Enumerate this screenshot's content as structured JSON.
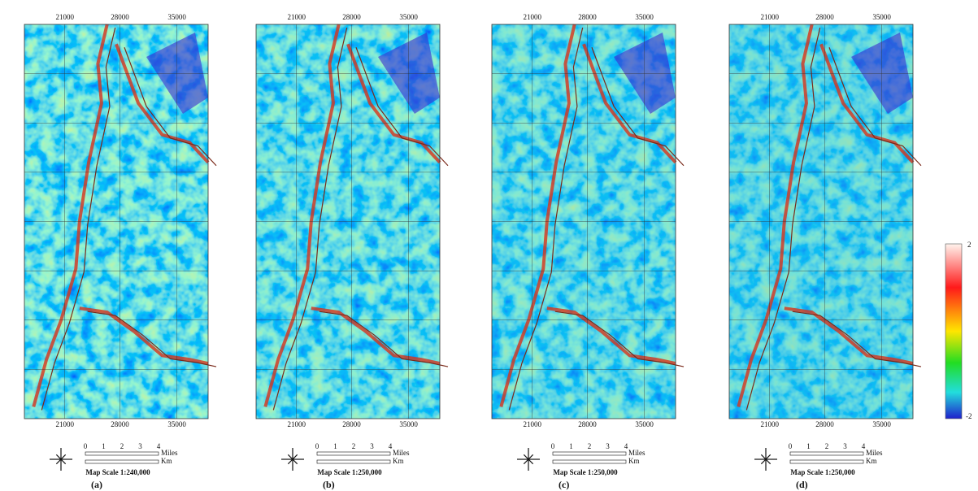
{
  "panels": [
    {
      "label": "(a)",
      "scale_text": "Map Scale 1:240,000",
      "top_ticks": [
        "21000",
        "28000",
        "35000"
      ],
      "bottom_ticks": [
        "21000",
        "28000",
        "35000"
      ]
    },
    {
      "label": "(b)",
      "scale_text": "Map Scale 1:250,000",
      "top_ticks": [
        "21000",
        "28000",
        "35000"
      ],
      "bottom_ticks": [
        "21000",
        "28000",
        "35000"
      ]
    },
    {
      "label": "(c)",
      "scale_text": "Map Scale 1:250,000",
      "top_ticks": [
        "21000",
        "28000",
        "35000"
      ],
      "bottom_ticks": [
        "21000",
        "28000",
        "35000"
      ]
    },
    {
      "label": "(d)",
      "scale_text": "Map Scale 1:250,000",
      "top_ticks": [
        "21000",
        "28000",
        "35000"
      ],
      "bottom_ticks": [
        "21000",
        "28000",
        "35000"
      ]
    }
  ],
  "scale_bar": {
    "numbers": [
      "0",
      "1",
      "2",
      "3",
      "4"
    ],
    "miles": "Miles",
    "km": "Km"
  },
  "legend": {
    "max": "2",
    "min": "-2"
  }
}
